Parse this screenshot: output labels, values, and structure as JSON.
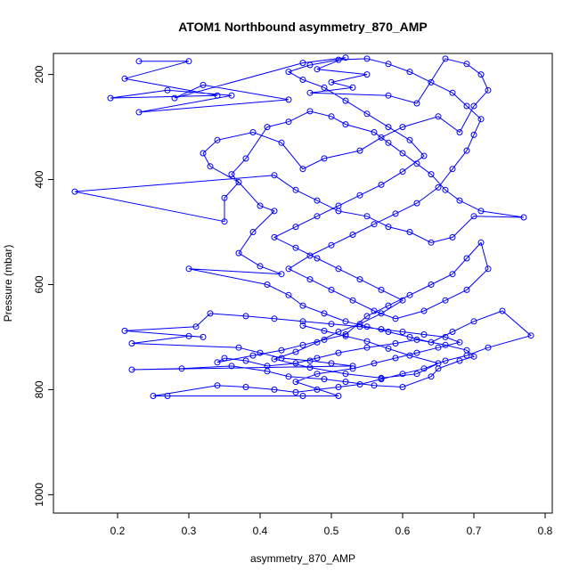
{
  "chart_data": {
    "type": "line",
    "title": "ATOM1 Northbound asymmetry_870_AMP",
    "xlabel": "asymmetry_870_AMP",
    "ylabel": "Pressure (mbar)",
    "xlim": [
      0.11,
      0.81
    ],
    "ylim": [
      1035,
      160
    ],
    "y_axis_inverted": true,
    "x_ticks": [
      0.2,
      0.3,
      0.4,
      0.5,
      0.6,
      0.7,
      0.8
    ],
    "x_tick_labels": [
      "0.2",
      "0.3",
      "0.4",
      "0.5",
      "0.6",
      "0.7",
      "0.8"
    ],
    "y_ticks": [
      200,
      400,
      600,
      800,
      1000
    ],
    "y_tick_labels": [
      "200",
      "400",
      "600",
      "800",
      "1000"
    ],
    "grid": false,
    "legend": "none",
    "marker": "open-circle",
    "series": [
      {
        "color": "#0000ff",
        "points": [
          [
            0.23,
            175
          ],
          [
            0.3,
            175
          ],
          [
            0.21,
            208
          ],
          [
            0.34,
            240
          ],
          [
            0.19,
            245
          ],
          [
            0.27,
            230
          ],
          [
            0.36,
            240
          ],
          [
            0.23,
            272
          ],
          [
            0.44,
            248
          ],
          [
            0.32,
            220
          ],
          [
            0.28,
            245
          ],
          [
            0.46,
            178
          ],
          [
            0.52,
            168
          ],
          [
            0.48,
            190
          ],
          [
            0.55,
            200
          ],
          [
            0.5,
            215
          ],
          [
            0.53,
            225
          ],
          [
            0.47,
            235
          ],
          [
            0.58,
            240
          ],
          [
            0.62,
            255
          ],
          [
            0.66,
            170
          ],
          [
            0.69,
            180
          ],
          [
            0.71,
            200
          ],
          [
            0.72,
            230
          ],
          [
            0.7,
            260
          ],
          [
            0.68,
            310
          ],
          [
            0.65,
            280
          ],
          [
            0.6,
            300
          ],
          [
            0.57,
            320
          ],
          [
            0.54,
            345
          ],
          [
            0.49,
            360
          ],
          [
            0.46,
            380
          ],
          [
            0.43,
            330
          ],
          [
            0.39,
            310
          ],
          [
            0.34,
            325
          ],
          [
            0.32,
            350
          ],
          [
            0.33,
            375
          ],
          [
            0.37,
            405
          ],
          [
            0.35,
            435
          ],
          [
            0.35,
            480
          ],
          [
            0.14,
            423
          ],
          [
            0.42,
            392
          ],
          [
            0.45,
            420
          ],
          [
            0.48,
            440
          ],
          [
            0.51,
            460
          ],
          [
            0.55,
            470
          ],
          [
            0.58,
            490
          ],
          [
            0.61,
            500
          ],
          [
            0.64,
            520
          ],
          [
            0.67,
            510
          ],
          [
            0.7,
            470
          ],
          [
            0.77,
            472
          ],
          [
            0.71,
            460
          ],
          [
            0.68,
            440
          ],
          [
            0.66,
            420
          ],
          [
            0.64,
            390
          ],
          [
            0.62,
            370
          ],
          [
            0.6,
            350
          ],
          [
            0.58,
            330
          ],
          [
            0.56,
            310
          ],
          [
            0.52,
            295
          ],
          [
            0.5,
            280
          ],
          [
            0.47,
            270
          ],
          [
            0.44,
            290
          ],
          [
            0.41,
            300
          ],
          [
            0.38,
            360
          ],
          [
            0.36,
            390
          ],
          [
            0.4,
            450
          ],
          [
            0.42,
            460
          ],
          [
            0.39,
            500
          ],
          [
            0.37,
            540
          ],
          [
            0.4,
            565
          ],
          [
            0.43,
            580
          ],
          [
            0.3,
            570
          ],
          [
            0.41,
            600
          ],
          [
            0.44,
            620
          ],
          [
            0.46,
            640
          ],
          [
            0.49,
            655
          ],
          [
            0.52,
            670
          ],
          [
            0.55,
            680
          ],
          [
            0.58,
            690
          ],
          [
            0.61,
            700
          ],
          [
            0.64,
            710
          ],
          [
            0.67,
            690
          ],
          [
            0.7,
            670
          ],
          [
            0.74,
            650
          ],
          [
            0.78,
            697
          ],
          [
            0.72,
            720
          ],
          [
            0.69,
            735
          ],
          [
            0.66,
            745
          ],
          [
            0.63,
            760
          ],
          [
            0.6,
            770
          ],
          [
            0.57,
            780
          ],
          [
            0.54,
            790
          ],
          [
            0.51,
            795
          ],
          [
            0.48,
            800
          ],
          [
            0.45,
            805
          ],
          [
            0.42,
            800
          ],
          [
            0.38,
            795
          ],
          [
            0.34,
            792
          ],
          [
            0.25,
            812
          ],
          [
            0.27,
            812
          ],
          [
            0.46,
            812
          ],
          [
            0.51,
            812
          ],
          [
            0.45,
            785
          ],
          [
            0.48,
            770
          ],
          [
            0.53,
            760
          ],
          [
            0.56,
            750
          ],
          [
            0.59,
            740
          ],
          [
            0.62,
            730
          ],
          [
            0.65,
            720
          ],
          [
            0.68,
            710
          ],
          [
            0.66,
            700
          ],
          [
            0.63,
            695
          ],
          [
            0.6,
            690
          ],
          [
            0.57,
            685
          ],
          [
            0.54,
            680
          ],
          [
            0.5,
            675
          ],
          [
            0.46,
            670
          ],
          [
            0.42,
            665
          ],
          [
            0.38,
            660
          ],
          [
            0.33,
            655
          ],
          [
            0.31,
            680
          ],
          [
            0.21,
            688
          ],
          [
            0.32,
            700
          ],
          [
            0.3,
            698
          ],
          [
            0.22,
            712
          ],
          [
            0.37,
            720
          ],
          [
            0.4,
            730
          ],
          [
            0.43,
            740
          ],
          [
            0.47,
            745
          ],
          [
            0.5,
            750
          ],
          [
            0.53,
            755
          ],
          [
            0.22,
            762
          ],
          [
            0.29,
            760
          ],
          [
            0.36,
            755
          ],
          [
            0.41,
            765
          ],
          [
            0.44,
            775
          ],
          [
            0.49,
            780
          ],
          [
            0.52,
            785
          ],
          [
            0.56,
            792
          ],
          [
            0.6,
            795
          ],
          [
            0.64,
            775
          ],
          [
            0.65,
            760
          ],
          [
            0.68,
            745
          ],
          [
            0.7,
            737
          ],
          [
            0.69,
            725
          ],
          [
            0.66,
            715
          ],
          [
            0.62,
            705
          ],
          [
            0.59,
            712
          ],
          [
            0.55,
            720
          ],
          [
            0.51,
            730
          ],
          [
            0.48,
            740
          ],
          [
            0.45,
            750
          ],
          [
            0.41,
            755
          ],
          [
            0.38,
            745
          ],
          [
            0.35,
            740
          ],
          [
            0.34,
            748
          ],
          [
            0.39,
            735
          ],
          [
            0.43,
            725
          ],
          [
            0.46,
            715
          ],
          [
            0.49,
            705
          ],
          [
            0.52,
            695
          ],
          [
            0.55,
            660
          ],
          [
            0.58,
            640
          ],
          [
            0.61,
            620
          ],
          [
            0.64,
            600
          ],
          [
            0.67,
            580
          ],
          [
            0.69,
            550
          ],
          [
            0.71,
            520
          ],
          [
            0.72,
            570
          ],
          [
            0.69,
            610
          ],
          [
            0.66,
            630
          ],
          [
            0.63,
            650
          ],
          [
            0.59,
            665
          ],
          [
            0.56,
            650
          ],
          [
            0.53,
            630
          ],
          [
            0.5,
            610
          ],
          [
            0.47,
            590
          ],
          [
            0.44,
            570
          ],
          [
            0.47,
            545
          ],
          [
            0.5,
            525
          ],
          [
            0.53,
            505
          ],
          [
            0.56,
            485
          ],
          [
            0.59,
            465
          ],
          [
            0.62,
            445
          ],
          [
            0.65,
            415
          ],
          [
            0.67,
            380
          ],
          [
            0.69,
            345
          ],
          [
            0.7,
            315
          ],
          [
            0.71,
            285
          ],
          [
            0.69,
            260
          ],
          [
            0.67,
            235
          ],
          [
            0.64,
            215
          ],
          [
            0.61,
            195
          ],
          [
            0.58,
            180
          ],
          [
            0.55,
            170
          ],
          [
            0.51,
            172
          ],
          [
            0.47,
            182
          ],
          [
            0.44,
            195
          ],
          [
            0.46,
            210
          ],
          [
            0.49,
            225
          ],
          [
            0.52,
            250
          ],
          [
            0.55,
            275
          ],
          [
            0.58,
            300
          ],
          [
            0.61,
            325
          ],
          [
            0.63,
            355
          ],
          [
            0.6,
            385
          ],
          [
            0.57,
            410
          ],
          [
            0.54,
            430
          ],
          [
            0.51,
            450
          ],
          [
            0.48,
            470
          ],
          [
            0.45,
            490
          ],
          [
            0.42,
            510
          ],
          [
            0.45,
            530
          ],
          [
            0.48,
            550
          ],
          [
            0.51,
            570
          ],
          [
            0.54,
            590
          ],
          [
            0.57,
            610
          ],
          [
            0.6,
            630
          ],
          [
            0.57,
            655
          ],
          [
            0.54,
            675
          ],
          [
            0.51,
            690
          ],
          [
            0.48,
            710
          ],
          [
            0.45,
            728
          ],
          [
            0.42,
            742
          ],
          [
            0.47,
            758
          ],
          [
            0.52,
            770
          ],
          [
            0.57,
            778
          ],
          [
            0.62,
            770
          ],
          [
            0.65,
            750
          ],
          [
            0.61,
            735
          ],
          [
            0.58,
            722
          ],
          [
            0.55,
            708
          ],
          [
            0.52,
            698
          ],
          [
            0.49,
            688
          ],
          [
            0.46,
            678
          ]
        ]
      }
    ]
  }
}
